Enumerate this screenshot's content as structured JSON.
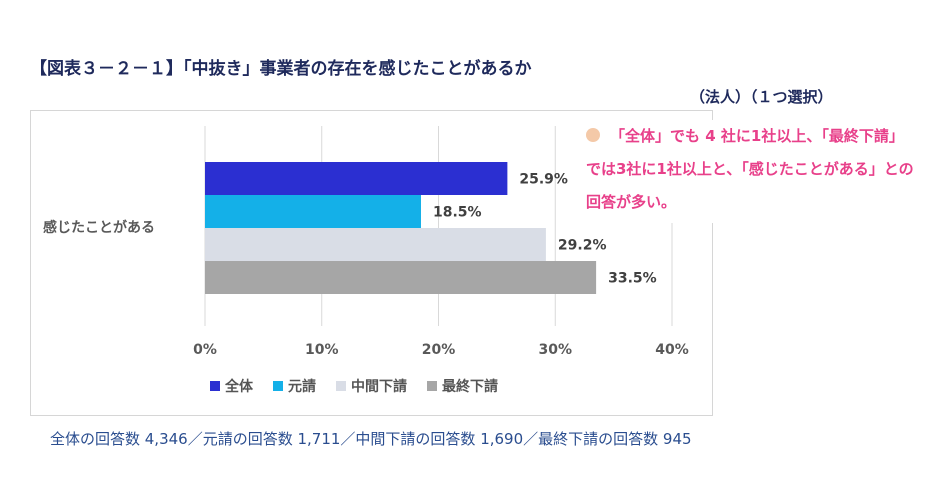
{
  "title": "【図表３－２－１】「中抜き」事業者の存在を感じたことがあるか",
  "subtitle": "（法人）（１つ選択）",
  "annotation": "「全体」でも 4 社に1社以上、「最終下請」では3社に1社以上と、「感じたことがある」との回答が多い。",
  "footnote": "全体の回答数 4,346／元請の回答数 1,711／中間下請の回答数 1,690／最終下請の回答数 945",
  "colors": {
    "series": [
      "#2b2fd1",
      "#14b0e8",
      "#d9dde6",
      "#a6a6a6"
    ],
    "annotation": "#e8408a",
    "bullet": "#f4c9a8"
  },
  "chart_data": {
    "type": "bar",
    "orientation": "horizontal",
    "categories": [
      "感じたことがある"
    ],
    "series": [
      {
        "name": "全体",
        "values": [
          25.9
        ],
        "label": "25.9%"
      },
      {
        "name": "元請",
        "values": [
          18.5
        ],
        "label": "18.5%"
      },
      {
        "name": "中間下請",
        "values": [
          29.2
        ],
        "label": "29.2%"
      },
      {
        "name": "最終下請",
        "values": [
          33.5
        ],
        "label": "33.5%"
      }
    ],
    "xlim": [
      0,
      40
    ],
    "xticks": [
      "0%",
      "10%",
      "20%",
      "30%",
      "40%"
    ],
    "grid": true,
    "legend": "bottom"
  }
}
